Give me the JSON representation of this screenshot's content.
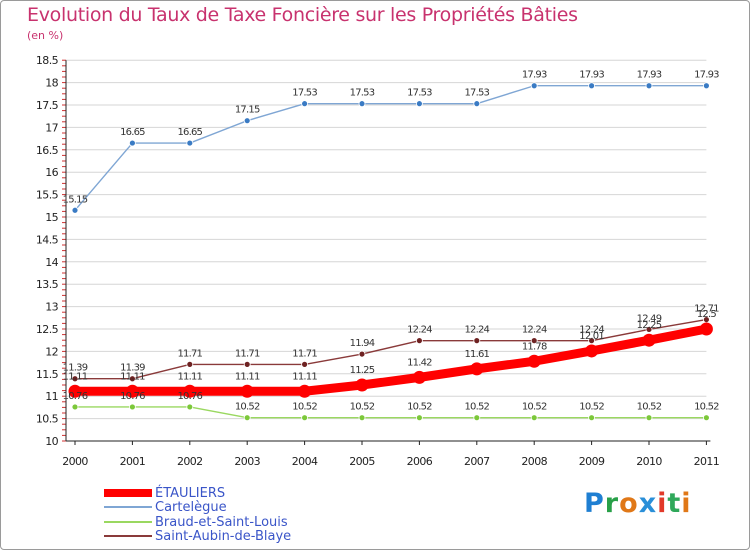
{
  "title": "Evolution du Taux de Taxe Foncière sur les Propriétés Bâties",
  "unit_label": "(en %)",
  "logo": [
    "P",
    "r",
    "o",
    "x",
    "i",
    "t",
    "i"
  ],
  "logo_colors": [
    "#1f7fd2",
    "#28a048",
    "#e07818",
    "#2a8fd8",
    "#e23a2a",
    "#2fa85a",
    "#e07818"
  ],
  "chart_data": {
    "type": "line",
    "title": "Evolution du Taux de Taxe Foncière sur les Propriétés Bâties",
    "ylabel": "(en %)",
    "xlabel": "",
    "x": [
      "2000",
      "2001",
      "2002",
      "2003",
      "2004",
      "2005",
      "2006",
      "2007",
      "2008",
      "2009",
      "2010",
      "2011"
    ],
    "yticks": [
      "10",
      "10.5",
      "11",
      "11.5",
      "12",
      "12.5",
      "13",
      "13.5",
      "14",
      "14.5",
      "15",
      "15.5",
      "16",
      "16.5",
      "17",
      "17.5",
      "18",
      "18.5"
    ],
    "ylim": [
      10,
      18.5
    ],
    "legend_position": "bottom-left",
    "series": [
      {
        "name": "ÉTAULIERS",
        "color": "#ff0000",
        "marker_color": "#ff0000",
        "thick": true,
        "values": [
          11.11,
          11.11,
          11.11,
          11.11,
          11.11,
          11.25,
          11.42,
          11.61,
          11.78,
          12.01,
          12.25,
          12.5
        ],
        "labels": [
          "11.11",
          "11.11",
          "11.11",
          "11.11",
          "11.11",
          "11.25",
          "11.42",
          "11.61",
          "11.78",
          "12.01",
          "12.25",
          "12.5"
        ]
      },
      {
        "name": "Cartelègue",
        "color": "#7fa6d4",
        "marker_color": "#3a7bc4",
        "thick": false,
        "values": [
          15.15,
          16.65,
          16.65,
          17.15,
          17.53,
          17.53,
          17.53,
          17.53,
          17.93,
          17.93,
          17.93,
          17.93
        ],
        "labels": [
          "15.15",
          "16.65",
          "16.65",
          "17.15",
          "17.53",
          "17.53",
          "17.53",
          "17.53",
          "17.93",
          "17.93",
          "17.93",
          "17.93"
        ]
      },
      {
        "name": "Braud-et-Saint-Louis",
        "color": "#9ad860",
        "marker_color": "#7cc83a",
        "thick": false,
        "values": [
          10.76,
          10.76,
          10.76,
          10.52,
          10.52,
          10.52,
          10.52,
          10.52,
          10.52,
          10.52,
          10.52,
          10.52
        ],
        "labels": [
          "10.76",
          "10.76",
          "10.76",
          "10.52",
          "10.52",
          "10.52",
          "10.52",
          "10.52",
          "10.52",
          "10.52",
          "10.52",
          "10.52"
        ]
      },
      {
        "name": "Saint-Aubin-de-Blaye",
        "color": "#8a3a3a",
        "marker_color": "#6e2222",
        "thick": false,
        "values": [
          11.39,
          11.39,
          11.71,
          11.71,
          11.71,
          11.94,
          12.24,
          12.24,
          12.24,
          12.24,
          12.49,
          12.71
        ],
        "labels": [
          "11.39",
          "11.39",
          "11.71",
          "11.71",
          "11.71",
          "11.94",
          "12.24",
          "12.24",
          "12.24",
          "12.24",
          "12.49",
          "12.71"
        ]
      }
    ]
  }
}
